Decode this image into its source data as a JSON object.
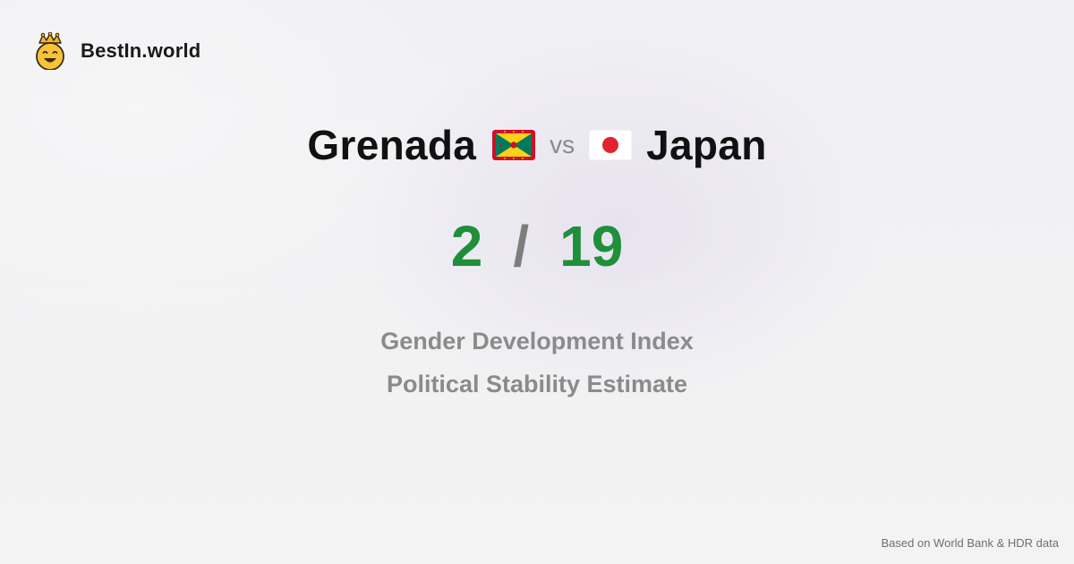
{
  "brand": {
    "name": "BestIn.world",
    "logo_icon": "smiling-crown-face-icon"
  },
  "comparison": {
    "left_country": "Grenada",
    "left_flag": "grenada-flag-icon",
    "vs_label": "vs",
    "right_country": "Japan",
    "right_flag": "japan-flag-icon"
  },
  "score": {
    "left": "2",
    "separator": "/",
    "right": "19"
  },
  "metrics": [
    "Gender Development Index",
    "Political Stability Estimate"
  ],
  "footer": {
    "source": "Based on World Bank & HDR data"
  },
  "colors": {
    "score_green": "#1f8f3a",
    "muted_gray": "#8b8b8b",
    "logo_yellow": "#f6c33b"
  }
}
